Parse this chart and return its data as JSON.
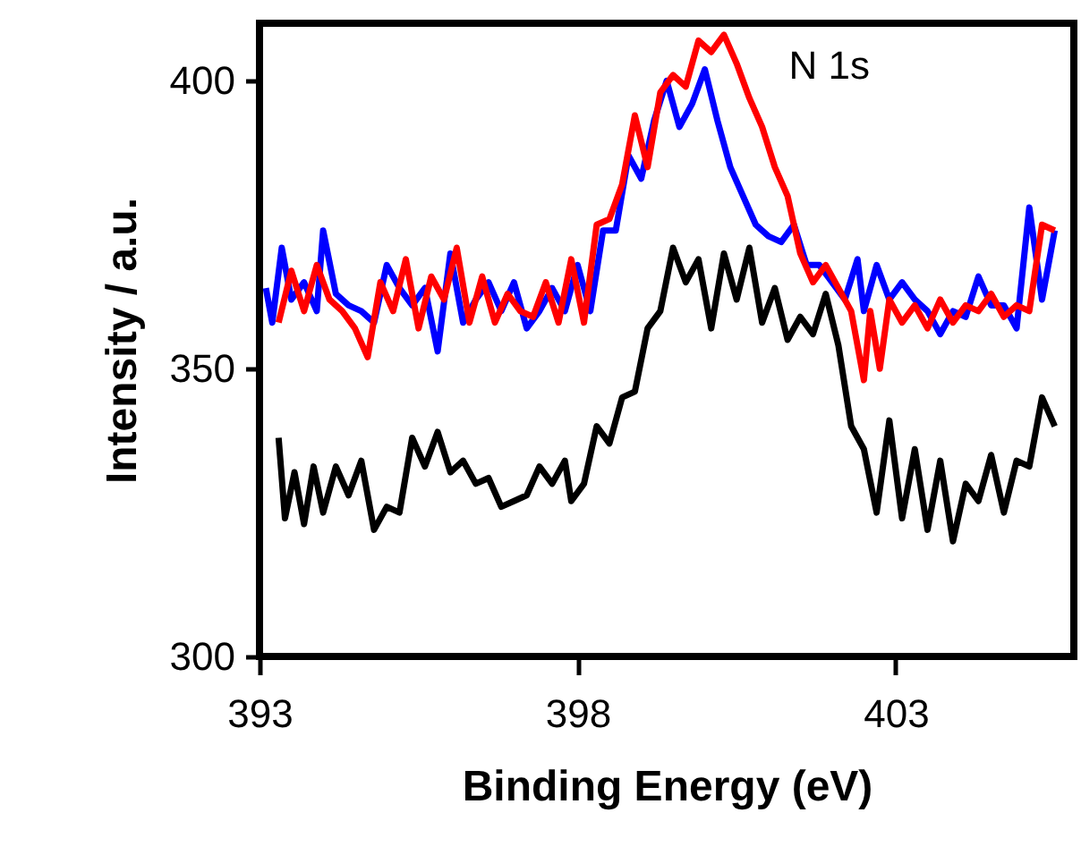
{
  "chart_data": {
    "type": "line",
    "xlabel": "Binding Energy (eV)",
    "ylabel": "Intensity / a.u.",
    "annotations": [
      "N 1s"
    ],
    "xlim": [
      393,
      405.8
    ],
    "ylim": [
      300,
      410
    ],
    "xticks": [
      393,
      398,
      403
    ],
    "yticks": [
      300,
      350,
      400
    ],
    "grid": false,
    "marker": "none",
    "line_style": "solid",
    "series": [
      {
        "color": "#000000",
        "x": [
          393.3,
          393.4,
          393.55,
          393.7,
          393.85,
          394.0,
          394.2,
          394.4,
          394.6,
          394.8,
          395.0,
          395.2,
          395.4,
          395.6,
          395.8,
          396.0,
          396.2,
          396.4,
          396.6,
          396.8,
          397.0,
          397.2,
          397.4,
          397.6,
          397.8,
          397.9,
          398.1,
          398.3,
          398.5,
          398.7,
          398.9,
          399.1,
          399.3,
          399.5,
          399.7,
          399.9,
          400.1,
          400.3,
          400.5,
          400.7,
          400.9,
          401.1,
          401.3,
          401.5,
          401.7,
          401.9,
          402.1,
          402.3,
          402.5,
          402.7,
          402.9,
          403.1,
          403.3,
          403.5,
          403.7,
          403.9,
          404.1,
          404.3,
          404.5,
          404.7,
          404.9,
          405.1,
          405.3,
          405.5
        ],
        "values": [
          338,
          324,
          332,
          323,
          333,
          325,
          333,
          328,
          334,
          322,
          326,
          325,
          338,
          333,
          339,
          332,
          334,
          330,
          331,
          326,
          327,
          328,
          333,
          330,
          334,
          327,
          330,
          340,
          337,
          345,
          346,
          357,
          360,
          371,
          365,
          369,
          357,
          370,
          362,
          371,
          358,
          364,
          355,
          359,
          356,
          363,
          354,
          340,
          336,
          325,
          341,
          324,
          336,
          322,
          334,
          320,
          330,
          327,
          335,
          325,
          334,
          333,
          345,
          340
        ]
      },
      {
        "color": "#0000ff",
        "x": [
          393.1,
          393.2,
          393.35,
          393.5,
          393.7,
          393.9,
          394.0,
          394.2,
          394.4,
          394.6,
          394.8,
          395.0,
          395.2,
          395.4,
          395.6,
          395.8,
          396.0,
          396.2,
          396.4,
          396.6,
          396.8,
          397.0,
          397.2,
          397.4,
          397.6,
          397.8,
          398.0,
          398.2,
          398.4,
          398.6,
          398.8,
          399.0,
          399.2,
          399.4,
          399.6,
          399.8,
          400.0,
          400.2,
          400.4,
          400.6,
          400.8,
          401.0,
          401.2,
          401.4,
          401.6,
          401.8,
          402.0,
          402.2,
          402.4,
          402.5,
          402.7,
          402.9,
          403.1,
          403.3,
          403.5,
          403.7,
          403.9,
          404.1,
          404.3,
          404.5,
          404.7,
          404.9,
          405.1,
          405.3,
          405.5
        ],
        "values": [
          364,
          358,
          371,
          362,
          365,
          360,
          374,
          363,
          361,
          360,
          358,
          368,
          364,
          361,
          364,
          353,
          370,
          358,
          362,
          365,
          360,
          365,
          357,
          360,
          364,
          360,
          368,
          360,
          374,
          374,
          387,
          383,
          393,
          400,
          392,
          396,
          402,
          393,
          385,
          380,
          375,
          373,
          372,
          375,
          368,
          368,
          365,
          362,
          369,
          360,
          368,
          362,
          365,
          362,
          360,
          356,
          360,
          359,
          366,
          361,
          361,
          357,
          378,
          362,
          374
        ]
      },
      {
        "color": "#ff0000",
        "x": [
          393.3,
          393.5,
          393.7,
          393.9,
          394.1,
          394.3,
          394.5,
          394.7,
          394.9,
          395.1,
          395.3,
          395.5,
          395.7,
          395.9,
          396.1,
          396.3,
          396.5,
          396.7,
          396.9,
          397.1,
          397.3,
          397.5,
          397.7,
          397.9,
          398.1,
          398.3,
          398.5,
          398.7,
          398.9,
          399.1,
          399.3,
          399.5,
          399.7,
          399.9,
          400.1,
          400.3,
          400.5,
          400.7,
          400.9,
          401.1,
          401.3,
          401.5,
          401.7,
          401.9,
          402.1,
          402.3,
          402.5,
          402.6,
          402.75,
          402.9,
          403.1,
          403.3,
          403.5,
          403.7,
          403.9,
          404.1,
          404.3,
          404.5,
          404.7,
          404.9,
          405.1,
          405.3,
          405.5
        ],
        "values": [
          358,
          367,
          360,
          368,
          362,
          360,
          357,
          352,
          365,
          360,
          369,
          357,
          366,
          362,
          371,
          358,
          366,
          358,
          363,
          360,
          359,
          365,
          358,
          369,
          358,
          375,
          376,
          382,
          394,
          385,
          398,
          401,
          399,
          407,
          405,
          408,
          403,
          397,
          392,
          385,
          380,
          370,
          365,
          368,
          364,
          360,
          348,
          360,
          350,
          362,
          358,
          361,
          357,
          362,
          358,
          361,
          360,
          363,
          359,
          361,
          360,
          375,
          374
        ]
      }
    ]
  }
}
